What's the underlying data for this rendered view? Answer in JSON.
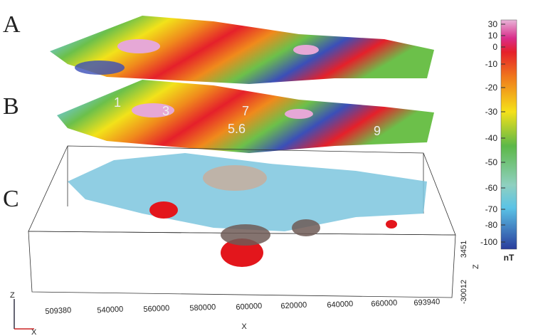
{
  "panels": [
    "A",
    "B",
    "C"
  ],
  "colorbar": {
    "ticks": [
      30,
      10,
      0,
      -10,
      -20,
      -30,
      -40,
      -50,
      -60,
      -70,
      -80,
      -100
    ],
    "unit": "nT"
  },
  "axes": {
    "x_label": "X",
    "z_label": "Z",
    "x_ticks": [
      509380,
      540000,
      560000,
      580000,
      600000,
      620000,
      640000,
      660000,
      693940
    ],
    "z_ticks": [
      3451,
      -30012
    ]
  },
  "triad": {
    "z": "Z",
    "x": "X"
  },
  "annotations": [
    "1",
    "3",
    "7",
    "5.6",
    "9"
  ]
}
